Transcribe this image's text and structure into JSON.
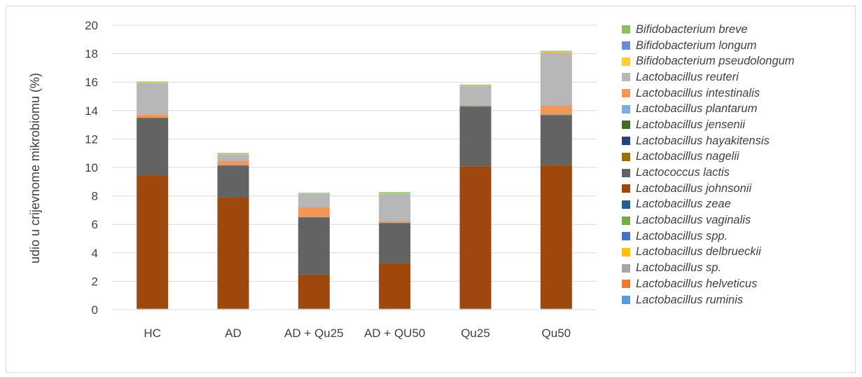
{
  "chart_data": {
    "type": "bar",
    "stacked": true,
    "title": "",
    "xlabel": "",
    "ylabel": "udio u crijevnome mikrobiomu (%)",
    "ylim": [
      0,
      20
    ],
    "yticks": [
      "0",
      "2",
      "4",
      "6",
      "8",
      "10",
      "12",
      "14",
      "16",
      "18",
      "20"
    ],
    "grid": true,
    "legend_position": "right",
    "categories": [
      "HC",
      "AD",
      "AD +  Qu25",
      "AD + QU50",
      "Qu25",
      "Qu50"
    ],
    "series": [
      {
        "name": "Lactobacillus ruminis",
        "color": "#5b9bd5",
        "values": [
          0.02,
          0.02,
          0.02,
          0.02,
          0.02,
          0.02
        ]
      },
      {
        "name": "Lactobacillus helveticus",
        "color": "#ed7d31",
        "values": [
          0.01,
          0.01,
          0.01,
          0.01,
          0.01,
          0.01
        ]
      },
      {
        "name": "Lactobacillus sp.",
        "color": "#a5a5a5",
        "values": [
          0.01,
          0.01,
          0.01,
          0.01,
          0.01,
          0.01
        ]
      },
      {
        "name": "Lactobacillus delbrueckii",
        "color": "#ffc000",
        "values": [
          0.01,
          0.01,
          0.01,
          0.01,
          0.01,
          0.01
        ]
      },
      {
        "name": "Lactobacillus spp.",
        "color": "#4472c4",
        "values": [
          0.01,
          0.01,
          0.01,
          0.01,
          0.01,
          0.01
        ]
      },
      {
        "name": "Lactobacillus vaginalis",
        "color": "#70ad47",
        "values": [
          0.01,
          0.01,
          0.01,
          0.01,
          0.01,
          0.01
        ]
      },
      {
        "name": "Lactobacillus zeae",
        "color": "#255e91",
        "values": [
          0.01,
          0.01,
          0.01,
          0.01,
          0.01,
          0.01
        ]
      },
      {
        "name": "Lactobacillus johnsonii",
        "color": "#9e480e",
        "values": [
          9.4,
          7.8,
          2.4,
          3.2,
          10.0,
          10.1
        ]
      },
      {
        "name": "Lactococcus lactis",
        "color": "#636363",
        "values": [
          4.0,
          2.25,
          4.0,
          2.8,
          4.2,
          3.5
        ]
      },
      {
        "name": "Lactobacillus nagelii",
        "color": "#997300",
        "values": [
          0.02,
          0.02,
          0.02,
          0.02,
          0.02,
          0.02
        ]
      },
      {
        "name": "Lactobacillus hayakitensis",
        "color": "#264478",
        "values": [
          0.01,
          0.01,
          0.01,
          0.01,
          0.01,
          0.01
        ]
      },
      {
        "name": "Lactobacillus jensenii",
        "color": "#43682b",
        "values": [
          0.01,
          0.01,
          0.01,
          0.01,
          0.01,
          0.01
        ]
      },
      {
        "name": "Lactobacillus plantarum",
        "color": "#7cafdd",
        "values": [
          0.01,
          0.01,
          0.01,
          0.01,
          0.01,
          0.01
        ]
      },
      {
        "name": "Lactobacillus intestinalis",
        "color": "#f1975a",
        "values": [
          0.2,
          0.3,
          0.7,
          0.1,
          0.05,
          0.65
        ]
      },
      {
        "name": "Lactobacillus reuteri",
        "color": "#b7b7b7",
        "values": [
          2.2,
          0.45,
          0.9,
          1.95,
          1.35,
          3.7
        ]
      },
      {
        "name": "Bifidobacterium pseudolongum",
        "color": "#ffcd33",
        "values": [
          0.05,
          0.03,
          0.03,
          0.03,
          0.04,
          0.06
        ]
      },
      {
        "name": "Bifidobacterium longum",
        "color": "#698ed0",
        "values": [
          0.01,
          0.01,
          0.01,
          0.01,
          0.01,
          0.01
        ]
      },
      {
        "name": "Bifidobacterium breve",
        "color": "#8cc168",
        "values": [
          0.05,
          0.05,
          0.05,
          0.05,
          0.05,
          0.05
        ]
      }
    ]
  }
}
